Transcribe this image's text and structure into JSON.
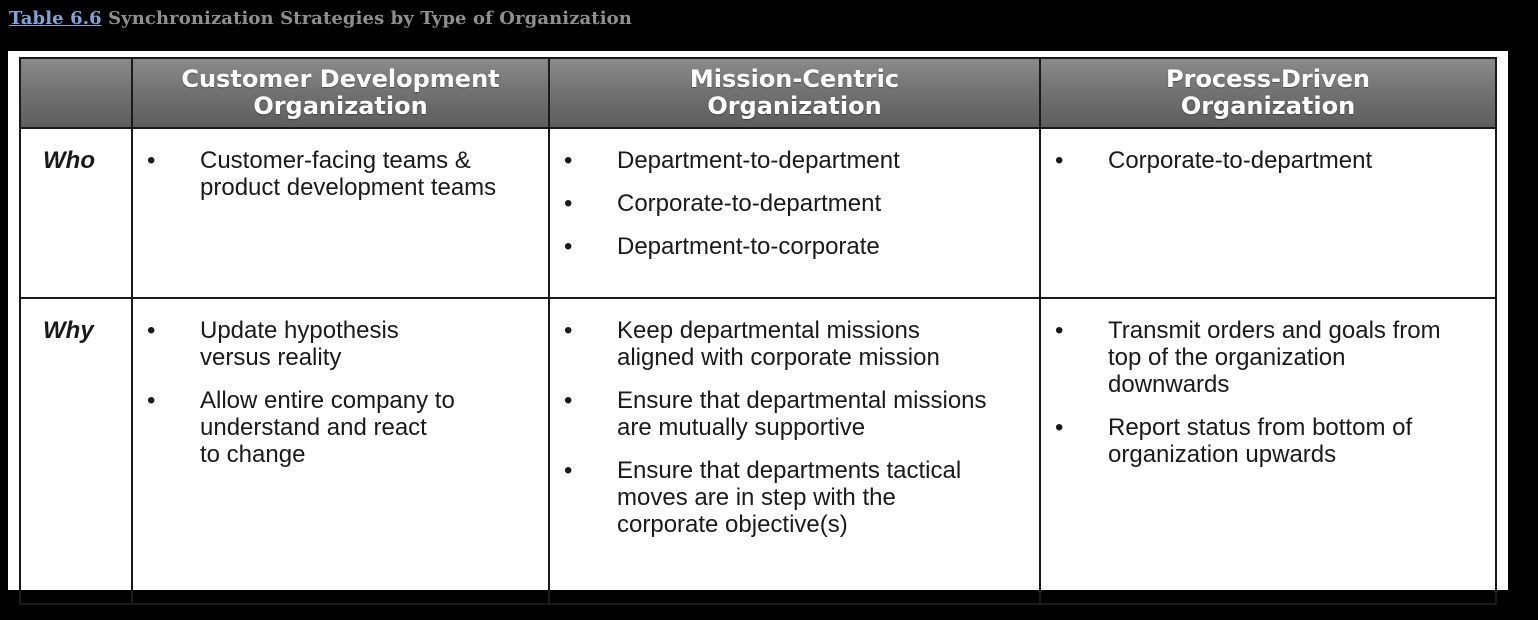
{
  "caption": {
    "link_text": "Table 6.6",
    "title": "Synchronization Strategies by Type of Organization"
  },
  "table": {
    "headers": [
      "",
      [
        "Customer Development",
        "Organization"
      ],
      [
        "Mission-Centric",
        "Organization"
      ],
      [
        "Process-Driven",
        "Organization"
      ]
    ],
    "rows": [
      {
        "label": "Who",
        "cells": [
          [
            [
              "Customer-facing teams &",
              "product development teams"
            ]
          ],
          [
            [
              "Department-to-department"
            ],
            [
              "Corporate-to-department"
            ],
            [
              "Department-to-corporate"
            ]
          ],
          [
            [
              "Corporate-to-department"
            ]
          ]
        ]
      },
      {
        "label": "Why",
        "cells": [
          [
            [
              "Update hypothesis",
              "versus reality"
            ],
            [
              "Allow entire company to",
              "understand and react",
              "to change"
            ]
          ],
          [
            [
              "Keep departmental missions",
              "aligned with corporate mission"
            ],
            [
              "Ensure that departmental missions",
              "are mutually supportive"
            ],
            [
              "Ensure that departments tactical",
              "moves are in step with the",
              "corporate objective(s)"
            ]
          ],
          [
            [
              "Transmit orders and goals from",
              "top of the organization",
              "downwards"
            ],
            [
              "Report status from bottom of",
              "organization upwards"
            ]
          ]
        ]
      }
    ]
  },
  "colors": {
    "page_background": "#000000",
    "caption_link": "#7ea6d8",
    "caption_title": "#8f8f8f",
    "header_fill": "#6f6f6f",
    "header_text": "#ffffff",
    "cell_text": "#1a1a1a"
  }
}
